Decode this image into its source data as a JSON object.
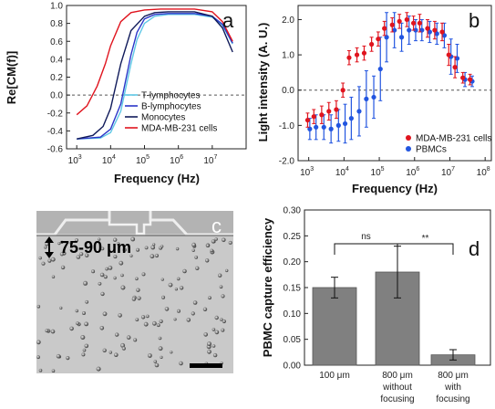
{
  "panels": {
    "a": {
      "panel_label": "a",
      "xlabel": "Frequency (Hz)",
      "ylabel": "Re[CM(f)]",
      "xtick_exponents": [
        "3",
        "4",
        "5",
        "6",
        "7"
      ],
      "ytick_labels": [
        "-0.6",
        "-0.4",
        "-0.2",
        "0.0",
        "0.2",
        "0.4",
        "0.6",
        "0.8",
        "1.0"
      ]
    },
    "b": {
      "panel_label": "b",
      "xlabel": "Frequency (Hz)",
      "ylabel": "Light intensity (A. U.)",
      "xtick_exponents": [
        "3",
        "4",
        "5",
        "6",
        "7",
        "8"
      ],
      "ytick_labels": [
        "-2.0",
        "-1.0",
        "0.0",
        "1.0",
        "2.0"
      ]
    },
    "c": {
      "panel_label": "c",
      "annotation": "75-90 μm"
    },
    "d": {
      "panel_label": "d",
      "ylabel": "PBMC capture efficiency",
      "ytick_labels": [
        "0.00",
        "0.05",
        "0.10",
        "0.15",
        "0.20",
        "0.25",
        "0.30"
      ],
      "sig_ns": "ns",
      "sig_star": "**",
      "bar_labels": [
        [
          "100 μm"
        ],
        [
          "800 μm",
          "without",
          "focusing"
        ],
        [
          "800 μm",
          "with",
          "focusing"
        ]
      ]
    }
  },
  "colors": {
    "t_lymph": "#5fc8e6",
    "b_lymph": "#2b36c8",
    "monocytes": "#101a5a",
    "mda": "#e0141e",
    "pbmc": "#2255e0",
    "bar": "#808080"
  },
  "chart_data": [
    {
      "type": "line",
      "title": "",
      "xlabel": "Frequency (Hz)",
      "ylabel": "Re[CM(f)]",
      "xscale": "log",
      "xlim": [
        500,
        100000000
      ],
      "ylim": [
        -0.6,
        1.0
      ],
      "hline": 0.0,
      "grid": false,
      "legend_position": "lower-right",
      "series": [
        {
          "name": "T-lymphocytes",
          "color": "#5fc8e6",
          "x": [
            1000,
            5000,
            10000,
            20000,
            40000,
            60000,
            100000,
            200000,
            500000,
            1000000,
            3000000,
            10000000,
            20000000,
            40000000
          ],
          "y": [
            -0.49,
            -0.48,
            -0.42,
            -0.18,
            0.35,
            0.62,
            0.8,
            0.88,
            0.9,
            0.9,
            0.9,
            0.87,
            0.78,
            0.57
          ]
        },
        {
          "name": "B-lymphocytes",
          "color": "#2b36c8",
          "x": [
            1000,
            5000,
            10000,
            20000,
            40000,
            60000,
            100000,
            200000,
            500000,
            1000000,
            3000000,
            10000000,
            20000000,
            40000000
          ],
          "y": [
            -0.49,
            -0.47,
            -0.38,
            -0.1,
            0.45,
            0.7,
            0.85,
            0.9,
            0.91,
            0.91,
            0.91,
            0.88,
            0.79,
            0.58
          ]
        },
        {
          "name": "Monocytes",
          "color": "#101a5a",
          "x": [
            1000,
            3000,
            6000,
            10000,
            20000,
            40000,
            100000,
            200000,
            500000,
            1000000,
            3000000,
            10000000,
            20000000,
            40000000
          ],
          "y": [
            -0.49,
            -0.45,
            -0.35,
            -0.15,
            0.35,
            0.72,
            0.88,
            0.92,
            0.93,
            0.93,
            0.93,
            0.88,
            0.75,
            0.48
          ]
        },
        {
          "name": "MDA-MB-231 cells",
          "color": "#e0141e",
          "x": [
            1000,
            2000,
            4000,
            7000,
            10000,
            20000,
            40000,
            100000,
            300000,
            1000000,
            3000000,
            10000000,
            20000000,
            40000000
          ],
          "y": [
            -0.22,
            -0.12,
            0.1,
            0.35,
            0.55,
            0.82,
            0.92,
            0.95,
            0.96,
            0.96,
            0.96,
            0.93,
            0.82,
            0.6
          ]
        }
      ]
    },
    {
      "type": "scatter",
      "title": "",
      "xlabel": "Frequency (Hz)",
      "ylabel": "Light intensity (A. U.)",
      "xscale": "log",
      "xlim": [
        500,
        150000000
      ],
      "ylim": [
        -2.0,
        2.4
      ],
      "hline": 0.0,
      "grid": false,
      "legend_position": "lower-right",
      "series": [
        {
          "name": "MDA-MB-231 cells",
          "color": "#e0141e",
          "x": [
            1000,
            1500,
            2500,
            4000,
            6500,
            10000,
            15000,
            25000,
            40000,
            65000,
            100000,
            150000,
            250000,
            400000,
            650000,
            1000000,
            1500000,
            2500000,
            4000000,
            6500000,
            10000000,
            15000000,
            25000000,
            40000000
          ],
          "y": [
            -0.85,
            -0.75,
            -0.7,
            -0.6,
            -0.55,
            0.0,
            0.92,
            1.0,
            1.05,
            1.3,
            1.45,
            1.75,
            1.85,
            1.95,
            2.0,
            1.9,
            1.9,
            1.75,
            1.7,
            1.65,
            1.0,
            0.65,
            0.35,
            0.3
          ],
          "err": [
            0.2,
            0.2,
            0.25,
            0.25,
            0.25,
            0.2,
            0.2,
            0.2,
            0.2,
            0.2,
            0.2,
            0.2,
            0.2,
            0.2,
            0.2,
            0.2,
            0.25,
            0.25,
            0.25,
            0.25,
            0.3,
            0.3,
            0.15,
            0.15
          ]
        },
        {
          "name": "PBMCs",
          "color": "#2255e0",
          "x": [
            1000,
            1500,
            2500,
            4000,
            6500,
            10000,
            15000,
            25000,
            40000,
            65000,
            100000,
            150000,
            250000,
            400000,
            650000,
            1000000,
            1500000,
            2500000,
            4000000,
            6500000,
            10000000,
            15000000,
            25000000,
            40000000
          ],
          "y": [
            -1.1,
            -1.05,
            -1.05,
            -1.1,
            -1.0,
            -0.95,
            -0.8,
            -0.6,
            -0.25,
            -0.2,
            0.6,
            1.5,
            1.7,
            1.5,
            1.7,
            1.7,
            1.7,
            1.65,
            1.6,
            1.55,
            0.95,
            0.9,
            0.3,
            0.25
          ],
          "err": [
            0.3,
            0.35,
            0.35,
            0.4,
            0.45,
            0.55,
            0.6,
            0.7,
            0.8,
            0.6,
            0.9,
            0.7,
            0.5,
            0.4,
            0.4,
            0.3,
            0.3,
            0.3,
            0.3,
            0.35,
            0.5,
            0.4,
            0.2,
            0.15
          ]
        }
      ]
    },
    {
      "type": "bar",
      "title": "",
      "xlabel": "",
      "ylabel": "PBMC capture efficiency",
      "categories": [
        "100 μm",
        "800 μm without focusing",
        "800 μm with focusing"
      ],
      "values": [
        0.15,
        0.18,
        0.02
      ],
      "errors": [
        0.02,
        0.05,
        0.01
      ],
      "ylim": [
        0.0,
        0.3
      ],
      "significance": [
        {
          "pair": [
            0,
            1
          ],
          "label": "ns"
        },
        {
          "pair": [
            1,
            2
          ],
          "label": "**"
        }
      ]
    }
  ]
}
